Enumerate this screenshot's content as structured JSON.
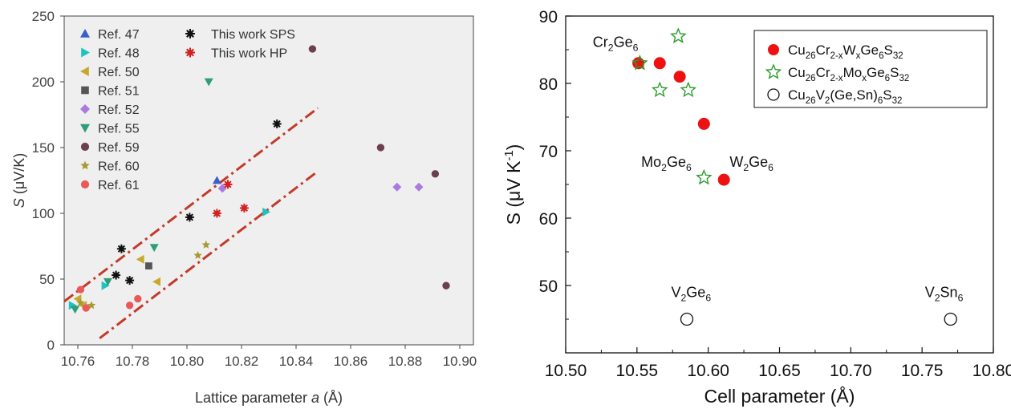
{
  "chart_data": [
    {
      "type": "scatter",
      "xlabel": "Lattice parameter",
      "xlabel_var": "a",
      "xlabel_unit": "(Å)",
      "ylabel_var": "S",
      "ylabel_unit": "(μV/K)",
      "xlim": [
        10.755,
        10.905
      ],
      "ylim": [
        0,
        250
      ],
      "xticks": [
        "10.76",
        "10.78",
        "10.80",
        "10.82",
        "10.84",
        "10.86",
        "10.88",
        "10.90"
      ],
      "xtick_values": [
        10.76,
        10.78,
        10.8,
        10.82,
        10.84,
        10.86,
        10.88,
        10.9
      ],
      "yticks": [
        "0",
        "50",
        "100",
        "150",
        "200",
        "250"
      ],
      "ytick_values": [
        0,
        50,
        100,
        150,
        200,
        250
      ],
      "background": "#efefef",
      "legend_placement": "top-left",
      "series": [
        {
          "name": "Ref. 47",
          "marker": "triangle-up",
          "color": "#3a5fcd",
          "points": [
            [
              10.811,
              125
            ]
          ]
        },
        {
          "name": "Ref. 48",
          "marker": "triangle-right",
          "color": "#1fc2c2",
          "points": [
            [
              10.758,
              30
            ],
            [
              10.77,
              45
            ],
            [
              10.829,
              101
            ]
          ]
        },
        {
          "name": "Ref. 50",
          "marker": "triangle-left",
          "color": "#c8a82c",
          "points": [
            [
              10.76,
              35
            ],
            [
              10.762,
              30
            ],
            [
              10.783,
              65
            ],
            [
              10.789,
              48
            ]
          ]
        },
        {
          "name": "Ref. 51",
          "marker": "square",
          "color": "#555555",
          "points": [
            [
              10.786,
              60
            ]
          ]
        },
        {
          "name": "Ref. 52",
          "marker": "diamond",
          "color": "#a97be0",
          "points": [
            [
              10.877,
              120
            ],
            [
              10.885,
              120
            ],
            [
              10.813,
              119
            ]
          ]
        },
        {
          "name": "Ref. 55",
          "marker": "triangle-down",
          "color": "#2e9e78",
          "points": [
            [
              10.759,
              27
            ],
            [
              10.771,
              48
            ],
            [
              10.788,
              74
            ],
            [
              10.808,
              200
            ]
          ]
        },
        {
          "name": "Ref. 59",
          "marker": "circle",
          "color": "#6b3f4f",
          "points": [
            [
              10.846,
              225
            ],
            [
              10.871,
              150
            ],
            [
              10.891,
              130
            ],
            [
              10.895,
              45
            ]
          ]
        },
        {
          "name": "Ref. 60",
          "marker": "star",
          "color": "#a89a30",
          "points": [
            [
              10.761,
              32
            ],
            [
              10.765,
              30
            ],
            [
              10.804,
              68
            ],
            [
              10.807,
              76
            ]
          ]
        },
        {
          "name": "Ref. 61",
          "marker": "circle",
          "color": "#e85a5a",
          "points": [
            [
              10.761,
              42
            ],
            [
              10.763,
              28
            ],
            [
              10.779,
              30
            ],
            [
              10.782,
              35
            ]
          ]
        },
        {
          "name": "This work SPS",
          "marker": "asterisk-square",
          "color": "#111111",
          "points": [
            [
              10.774,
              53
            ],
            [
              10.776,
              73
            ],
            [
              10.779,
              49
            ],
            [
              10.801,
              97
            ],
            [
              10.833,
              168
            ]
          ]
        },
        {
          "name": "This work HP",
          "marker": "asterisk-square",
          "color": "#d32020",
          "points": [
            [
              10.811,
              100
            ],
            [
              10.815,
              122
            ],
            [
              10.821,
              104
            ]
          ]
        }
      ],
      "trend_lines": [
        {
          "from": [
            10.755,
            33
          ],
          "to": [
            10.848,
            180
          ]
        },
        {
          "from": [
            10.768,
            5
          ],
          "to": [
            10.848,
            132
          ]
        }
      ],
      "line_color": "#c23b2b"
    },
    {
      "type": "scatter",
      "xlabel": "Cell parameter (Å)",
      "ylabel_main": "S (μV K",
      "ylabel_sup": "-1",
      "ylabel_end": ")",
      "xlim": [
        10.5,
        10.8
      ],
      "ylim": [
        40,
        90
      ],
      "xticks": [
        "10.50",
        "10.55",
        "10.60",
        "10.65",
        "10.70",
        "10.75",
        "10.80"
      ],
      "xtick_values": [
        10.5,
        10.55,
        10.6,
        10.65,
        10.7,
        10.75,
        10.8
      ],
      "yticks": [
        "50",
        "60",
        "70",
        "80",
        "90"
      ],
      "ytick_values": [
        50,
        60,
        70,
        80,
        90
      ],
      "legend_placement": "top-right",
      "series": [
        {
          "marker": "circle-filled",
          "color": "#ee1111",
          "label_parts": [
            [
              "Cu",
              ""
            ],
            [
              "26",
              "sub"
            ],
            [
              "Cr",
              ""
            ],
            [
              "2-x",
              "sub"
            ],
            [
              "W",
              ""
            ],
            [
              "x",
              "sub"
            ],
            [
              "Ge",
              ""
            ],
            [
              "6",
              "sub"
            ],
            [
              "S",
              ""
            ],
            [
              "32",
              "sub"
            ]
          ],
          "points": [
            [
              10.551,
              83
            ],
            [
              10.566,
              83
            ],
            [
              10.58,
              81
            ],
            [
              10.597,
              74
            ],
            [
              10.611,
              65.7
            ]
          ]
        },
        {
          "marker": "star-open",
          "color": "#2a9d2a",
          "label_parts": [
            [
              "Cu",
              ""
            ],
            [
              "26",
              "sub"
            ],
            [
              "Cr",
              ""
            ],
            [
              "2-x",
              "sub"
            ],
            [
              "Mo",
              ""
            ],
            [
              "x",
              "sub"
            ],
            [
              "Ge",
              ""
            ],
            [
              "6",
              "sub"
            ],
            [
              "S",
              ""
            ],
            [
              "32",
              "sub"
            ]
          ],
          "points": [
            [
              10.552,
              83
            ],
            [
              10.579,
              87
            ],
            [
              10.566,
              79
            ],
            [
              10.586,
              79
            ],
            [
              10.597,
              66
            ]
          ]
        },
        {
          "marker": "circle-open",
          "color": "#111111",
          "label_parts": [
            [
              "Cu",
              ""
            ],
            [
              "26",
              "sub"
            ],
            [
              "V",
              ""
            ],
            [
              "2",
              "sub"
            ],
            [
              "(Ge,Sn)",
              ""
            ],
            [
              "6",
              "sub"
            ],
            [
              "S",
              ""
            ],
            [
              "32",
              "sub"
            ]
          ],
          "points": [
            [
              10.585,
              45
            ],
            [
              10.77,
              45
            ]
          ]
        }
      ],
      "annotations": [
        {
          "parts": [
            [
              "Cr",
              ""
            ],
            [
              "2",
              "sub"
            ],
            [
              "Ge",
              ""
            ],
            [
              "6",
              "sub"
            ]
          ],
          "x": 10.519,
          "y": 85.4
        },
        {
          "parts": [
            [
              "Mo",
              ""
            ],
            [
              "2",
              "sub"
            ],
            [
              "Ge",
              ""
            ],
            [
              "6",
              "sub"
            ]
          ],
          "x": 10.553,
          "y": 67.6
        },
        {
          "parts": [
            [
              "W",
              ""
            ],
            [
              "2",
              "sub"
            ],
            [
              "Ge",
              ""
            ],
            [
              "6",
              "sub"
            ]
          ],
          "x": 10.615,
          "y": 67.6
        },
        {
          "parts": [
            [
              "V",
              ""
            ],
            [
              "2",
              "sub"
            ],
            [
              "Ge",
              ""
            ],
            [
              "6",
              "sub"
            ]
          ],
          "x": 10.574,
          "y": 48.3
        },
        {
          "parts": [
            [
              "V",
              ""
            ],
            [
              "2",
              "sub"
            ],
            [
              "Sn",
              ""
            ],
            [
              "6",
              "sub"
            ]
          ],
          "x": 10.752,
          "y": 48.3
        }
      ]
    }
  ]
}
